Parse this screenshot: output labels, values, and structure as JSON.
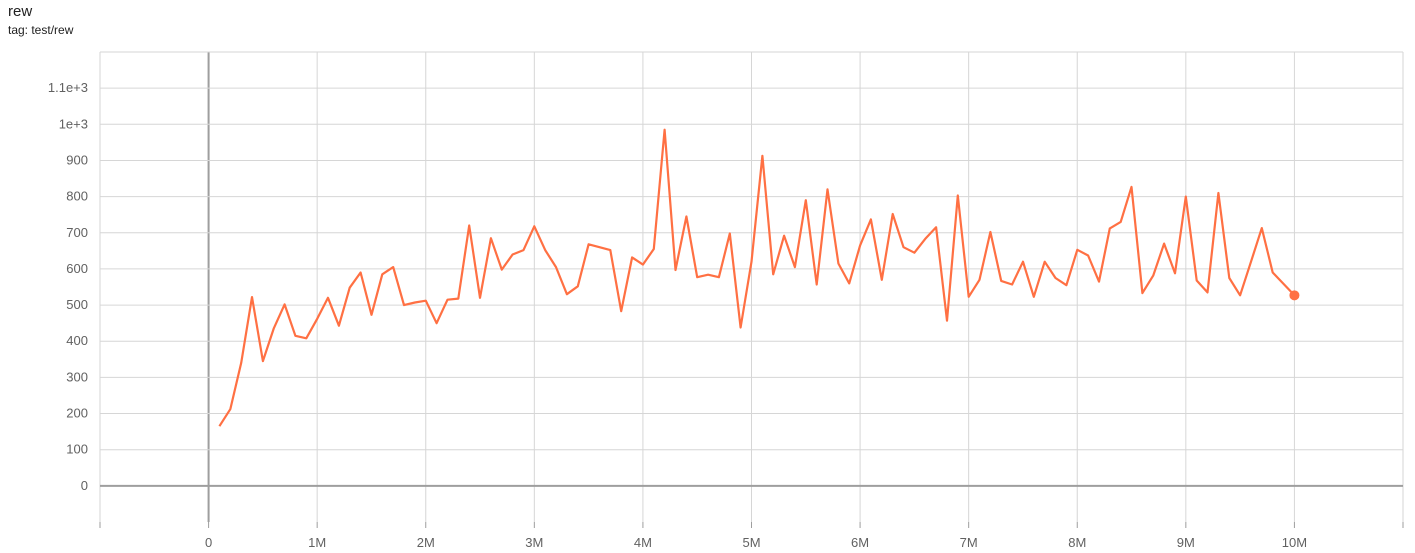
{
  "header": {
    "title": "rew",
    "tag": "tag: test/rew"
  },
  "chart_data": {
    "type": "line",
    "title": "rew",
    "xlim": [
      -1000000,
      11000000
    ],
    "ylim": [
      -100,
      1200
    ],
    "grid": true,
    "color": "#ff7043",
    "x_ticks": [
      {
        "v": 0,
        "label": "0"
      },
      {
        "v": 1000000,
        "label": "1M"
      },
      {
        "v": 2000000,
        "label": "2M"
      },
      {
        "v": 3000000,
        "label": "3M"
      },
      {
        "v": 4000000,
        "label": "4M"
      },
      {
        "v": 5000000,
        "label": "5M"
      },
      {
        "v": 6000000,
        "label": "6M"
      },
      {
        "v": 7000000,
        "label": "7M"
      },
      {
        "v": 8000000,
        "label": "8M"
      },
      {
        "v": 9000000,
        "label": "9M"
      },
      {
        "v": 10000000,
        "label": "10M"
      }
    ],
    "y_ticks": [
      {
        "v": 0,
        "label": "0"
      },
      {
        "v": 100,
        "label": "100"
      },
      {
        "v": 200,
        "label": "200"
      },
      {
        "v": 300,
        "label": "300"
      },
      {
        "v": 400,
        "label": "400"
      },
      {
        "v": 500,
        "label": "500"
      },
      {
        "v": 600,
        "label": "600"
      },
      {
        "v": 700,
        "label": "700"
      },
      {
        "v": 800,
        "label": "800"
      },
      {
        "v": 900,
        "label": "900"
      },
      {
        "v": 1000,
        "label": "1e+3"
      },
      {
        "v": 1100,
        "label": "1.1e+3"
      }
    ],
    "series": [
      {
        "x": [
          100000,
          200000,
          300000,
          400000,
          500000,
          600000,
          700000,
          800000,
          900000,
          1000000,
          1100000,
          1200000,
          1300000,
          1400000,
          1500000,
          1600000,
          1700000,
          1800000,
          1900000,
          2000000,
          2100000,
          2200000,
          2300000,
          2400000,
          2500000,
          2600000,
          2700000,
          2800000,
          2900000,
          3000000,
          3100000,
          3200000,
          3300000,
          3400000,
          3500000,
          3600000,
          3700000,
          3800000,
          3900000,
          4000000,
          4100000,
          4200000,
          4300000,
          4400000,
          4500000,
          4600000,
          4700000,
          4800000,
          4900000,
          5000000,
          5100000,
          5200000,
          5300000,
          5400000,
          5500000,
          5600000,
          5700000,
          5800000,
          5900000,
          6000000,
          6100000,
          6200000,
          6300000,
          6400000,
          6500000,
          6600000,
          6700000,
          6800000,
          6900000,
          7000000,
          7100000,
          7200000,
          7300000,
          7400000,
          7500000,
          7600000,
          7700000,
          7800000,
          7900000,
          8000000,
          8100000,
          8200000,
          8300000,
          8400000,
          8500000,
          8600000,
          8700000,
          8800000,
          8900000,
          9000000,
          9100000,
          9200000,
          9300000,
          9400000,
          9500000,
          9600000,
          9700000,
          9800000,
          10000000
        ],
        "y": [
          165,
          212,
          340,
          522,
          345,
          435,
          502,
          415,
          408,
          462,
          520,
          443,
          548,
          590,
          473,
          585,
          605,
          500,
          507,
          512,
          450,
          515,
          518,
          720,
          520,
          685,
          598,
          640,
          652,
          718,
          652,
          605,
          530,
          552,
          668,
          660,
          652,
          483,
          632,
          612,
          655,
          985,
          597,
          745,
          577,
          584,
          577,
          698,
          438,
          620,
          913,
          585,
          692,
          605,
          790,
          557,
          820,
          615,
          560,
          665,
          737,
          570,
          752,
          660,
          645,
          683,
          715,
          457,
          803,
          523,
          570,
          702,
          567,
          557,
          620,
          523,
          620,
          575,
          555,
          653,
          637,
          565,
          712,
          730,
          827,
          533,
          582,
          670,
          588,
          800,
          568,
          535,
          810,
          575,
          527,
          620,
          713,
          590,
          527
        ]
      }
    ]
  }
}
